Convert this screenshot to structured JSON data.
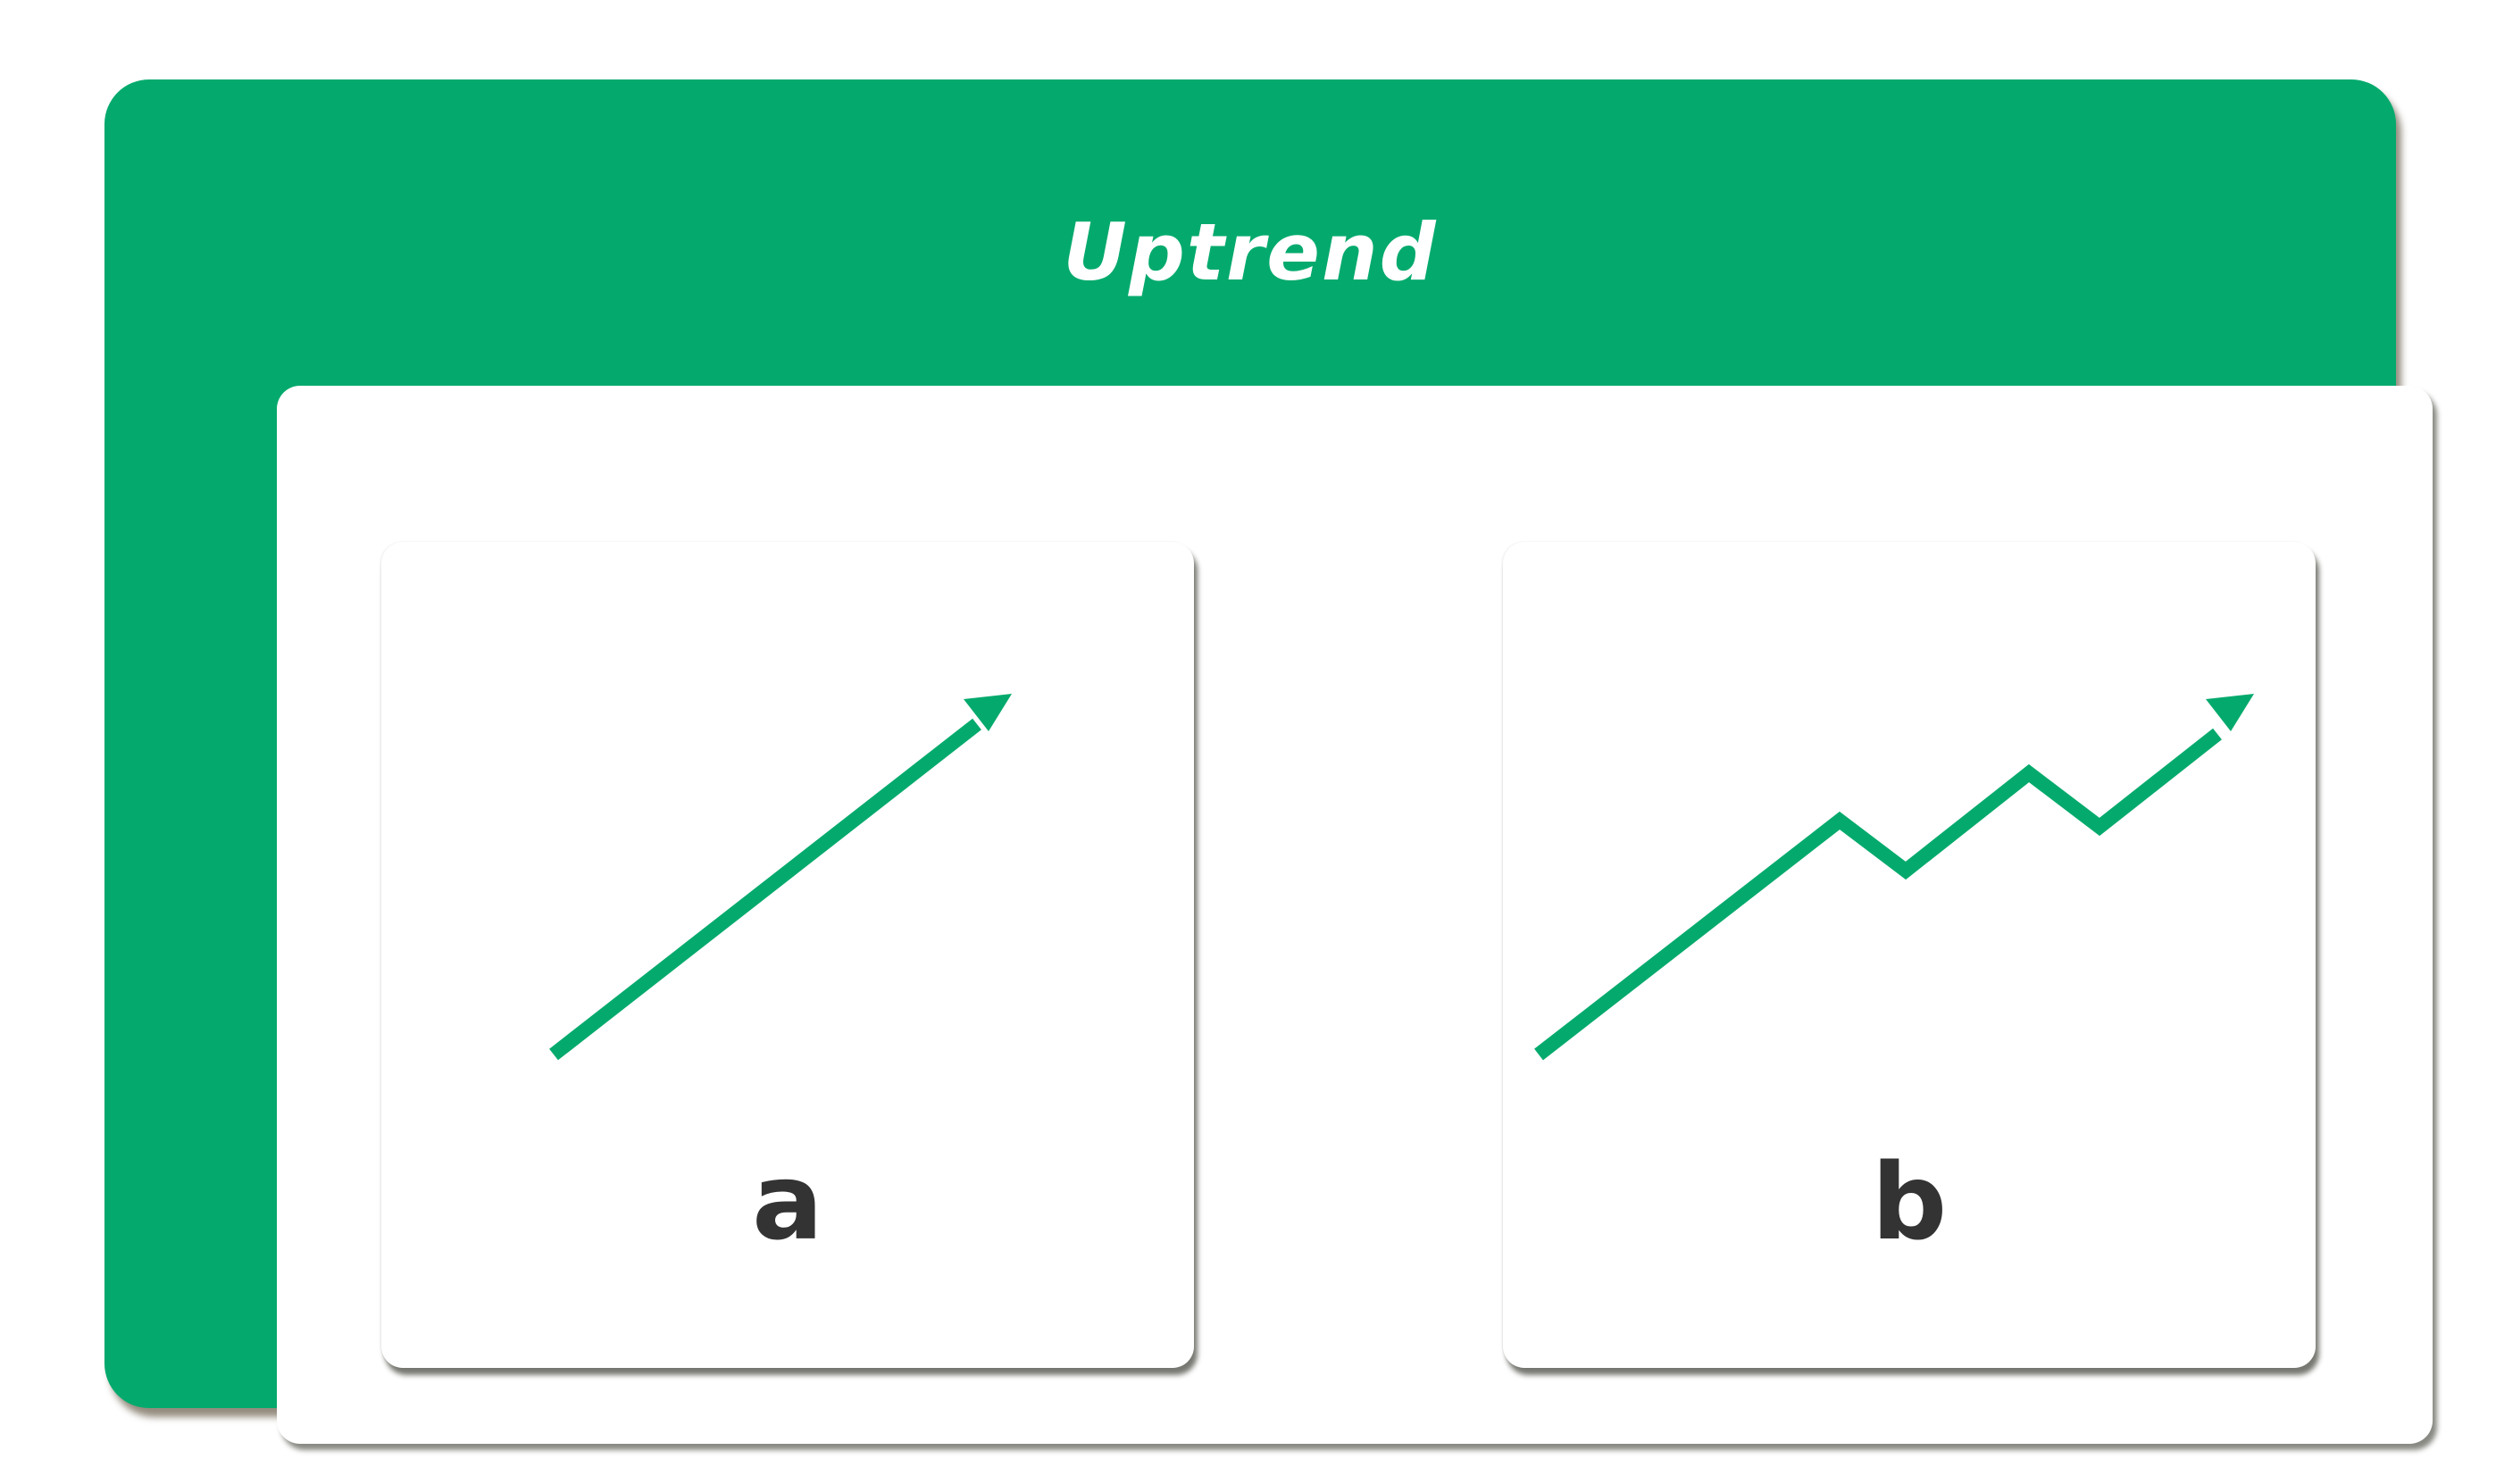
{
  "title": "Uptrend",
  "colors": {
    "accent": "#04aa6d",
    "panel": "#ffffff",
    "label": "#333333"
  },
  "panels": [
    {
      "label": "a",
      "line_shape": "straight"
    },
    {
      "label": "b",
      "line_shape": "zigzag"
    }
  ]
}
